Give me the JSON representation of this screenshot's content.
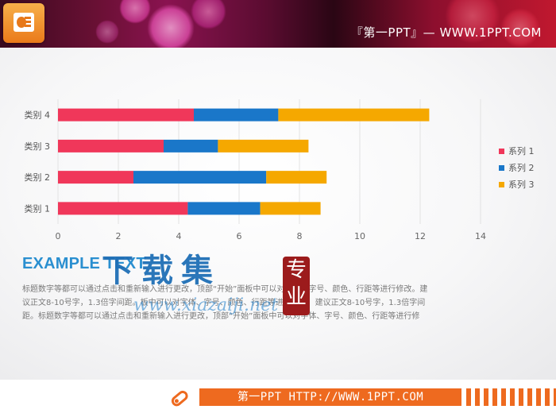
{
  "header": {
    "title": "『第一PPT』— WWW.1PPT.COM",
    "logo_icon": "powerpoint-icon"
  },
  "chart_data": {
    "type": "bar",
    "orientation": "horizontal",
    "stacked": true,
    "categories": [
      "类别 1",
      "类别 2",
      "类别 3",
      "类别 4"
    ],
    "series": [
      {
        "name": "系列 1",
        "color": "#f0375a",
        "values": [
          4.3,
          2.5,
          3.5,
          4.5
        ]
      },
      {
        "name": "系列 2",
        "color": "#1a77c9",
        "values": [
          2.4,
          4.4,
          1.8,
          2.8
        ]
      },
      {
        "name": "系列 3",
        "color": "#f5a800",
        "values": [
          2.0,
          2.0,
          3.0,
          5.0
        ]
      }
    ],
    "xlim": [
      0,
      14
    ],
    "xticks": [
      "0",
      "2",
      "4",
      "6",
      "8",
      "10",
      "12",
      "14"
    ],
    "grid": true,
    "legend": "right"
  },
  "text": {
    "heading": "EXAMPLE TEXT",
    "body": "标题数字等都可以通过点击和重新输入进行更改，顶部“开始”面板中可以对字体、字号、颜色、行距等进行修改。建议正文8-10号字，1.3倍字间距。板中可以对字体、字号、颜色、行距等进行修改，建议正文8-10号字，1.3倍字间距。标题数字等都可以通过点击和重新输入进行更改，顶部“开始”面板中可以对字体、字号、颜色、行距等进行修"
  },
  "watermark": {
    "chars": "下载集",
    "url": "www.xiazaiji.net",
    "seal": "专业"
  },
  "footer": {
    "text": "第一PPT HTTP://WWW.1PPT.COM",
    "icon": "pencil-icon"
  }
}
